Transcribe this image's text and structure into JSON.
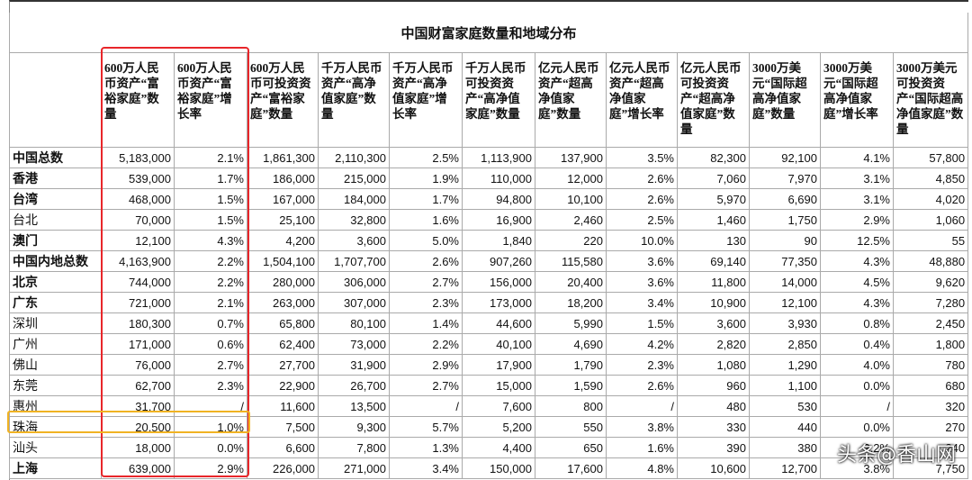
{
  "title": "中国财富家庭数量和地域分布",
  "columns": [
    "600万人民币资产“富裕家庭”数量",
    "600万人民币资产“富裕家庭”增长率",
    "600万人民币可投资资产“富裕家庭”数量",
    "千万人民币资产“高净值家庭”数量",
    "千万人民币资产“高净值家庭”增长率",
    "千万人民币可投资资产“高净值家庭”数量",
    "亿元人民币资产“超高净值家庭”数量",
    "亿元人民币资产“超高净值家庭”增长率",
    "亿元人民币可投资资产“超高净值家庭”数量",
    "3000万美元“国际超高净值家庭”数量",
    "3000万美元“国际超高净值家庭”增长率",
    "3000万美元可投资资产“国际超高净值家庭”数量"
  ],
  "rows": [
    {
      "label": "中国总数",
      "cells": [
        "5,183,000",
        "2.1%",
        "1,861,300",
        "2,110,300",
        "2.5%",
        "1,113,900",
        "137,900",
        "3.5%",
        "82,300",
        "92,100",
        "4.1%",
        "57,800"
      ]
    },
    {
      "label": "香港",
      "cells": [
        "539,000",
        "1.7%",
        "186,000",
        "215,000",
        "1.9%",
        "110,000",
        "12,000",
        "2.6%",
        "7,060",
        "7,970",
        "3.1%",
        "4,850"
      ]
    },
    {
      "label": "台湾",
      "cells": [
        "468,000",
        "1.5%",
        "167,000",
        "184,000",
        "1.7%",
        "94,800",
        "10,100",
        "2.6%",
        "5,970",
        "6,690",
        "3.1%",
        "4,020"
      ]
    },
    {
      "label": "台北",
      "cells": [
        "70,000",
        "1.5%",
        "25,100",
        "32,800",
        "1.6%",
        "16,900",
        "2,460",
        "2.5%",
        "1,460",
        "1,750",
        "2.9%",
        "1,060"
      ]
    },
    {
      "label": "澳门",
      "cells": [
        "12,100",
        "4.3%",
        "4,200",
        "3,600",
        "5.0%",
        "1,840",
        "220",
        "10.0%",
        "130",
        "90",
        "12.5%",
        "55"
      ]
    },
    {
      "label": "中国内地总数",
      "cells": [
        "4,163,900",
        "2.2%",
        "1,504,100",
        "1,707,700",
        "2.6%",
        "907,260",
        "115,580",
        "3.6%",
        "69,140",
        "77,350",
        "4.3%",
        "48,880"
      ]
    },
    {
      "label": "北京",
      "cells": [
        "744,000",
        "2.2%",
        "280,000",
        "306,000",
        "2.7%",
        "156,000",
        "20,400",
        "3.6%",
        "11,800",
        "14,000",
        "4.5%",
        "9,620"
      ]
    },
    {
      "label": "广东",
      "cells": [
        "721,000",
        "2.1%",
        "263,000",
        "307,000",
        "2.3%",
        "173,000",
        "18,200",
        "3.4%",
        "10,900",
        "12,100",
        "4.3%",
        "7,280"
      ]
    },
    {
      "label": "深圳",
      "cells": [
        "180,300",
        "0.7%",
        "65,800",
        "80,100",
        "1.4%",
        "44,600",
        "5,990",
        "1.5%",
        "3,600",
        "3,930",
        "0.8%",
        "2,450"
      ]
    },
    {
      "label": "广州",
      "cells": [
        "171,000",
        "0.6%",
        "62,400",
        "73,000",
        "2.2%",
        "40,100",
        "4,690",
        "4.2%",
        "2,820",
        "2,850",
        "0.4%",
        "1,800"
      ]
    },
    {
      "label": "佛山",
      "cells": [
        "76,000",
        "2.7%",
        "27,700",
        "31,900",
        "2.9%",
        "17,900",
        "1,790",
        "2.3%",
        "1,080",
        "1,290",
        "4.0%",
        "780"
      ]
    },
    {
      "label": "东莞",
      "cells": [
        "62,700",
        "2.3%",
        "22,900",
        "26,700",
        "2.7%",
        "15,000",
        "1,590",
        "2.6%",
        "960",
        "1,100",
        "0.0%",
        "680"
      ]
    },
    {
      "label": "惠州",
      "cells": [
        "31,700",
        "/",
        "11,600",
        "13,500",
        "/",
        "7,600",
        "800",
        "/",
        "480",
        "530",
        "/",
        "320"
      ]
    },
    {
      "label": "珠海",
      "cells": [
        "20,500",
        "1.0%",
        "7,500",
        "9,300",
        "5.7%",
        "5,200",
        "550",
        "3.8%",
        "330",
        "440",
        "0.0%",
        "270"
      ]
    },
    {
      "label": "汕头",
      "cells": [
        "18,000",
        "0.0%",
        "6,600",
        "7,800",
        "1.3%",
        "4,400",
        "650",
        "1.6%",
        "390",
        "380",
        "2.2%",
        "240"
      ]
    },
    {
      "label": "上海",
      "cells": [
        "639,000",
        "2.9%",
        "226,000",
        "271,000",
        "3.4%",
        "150,000",
        "17,600",
        "4.8%",
        "10,600",
        "12,700",
        "3.8%",
        "7,750"
      ]
    }
  ],
  "watermark": "头条@香山网"
}
